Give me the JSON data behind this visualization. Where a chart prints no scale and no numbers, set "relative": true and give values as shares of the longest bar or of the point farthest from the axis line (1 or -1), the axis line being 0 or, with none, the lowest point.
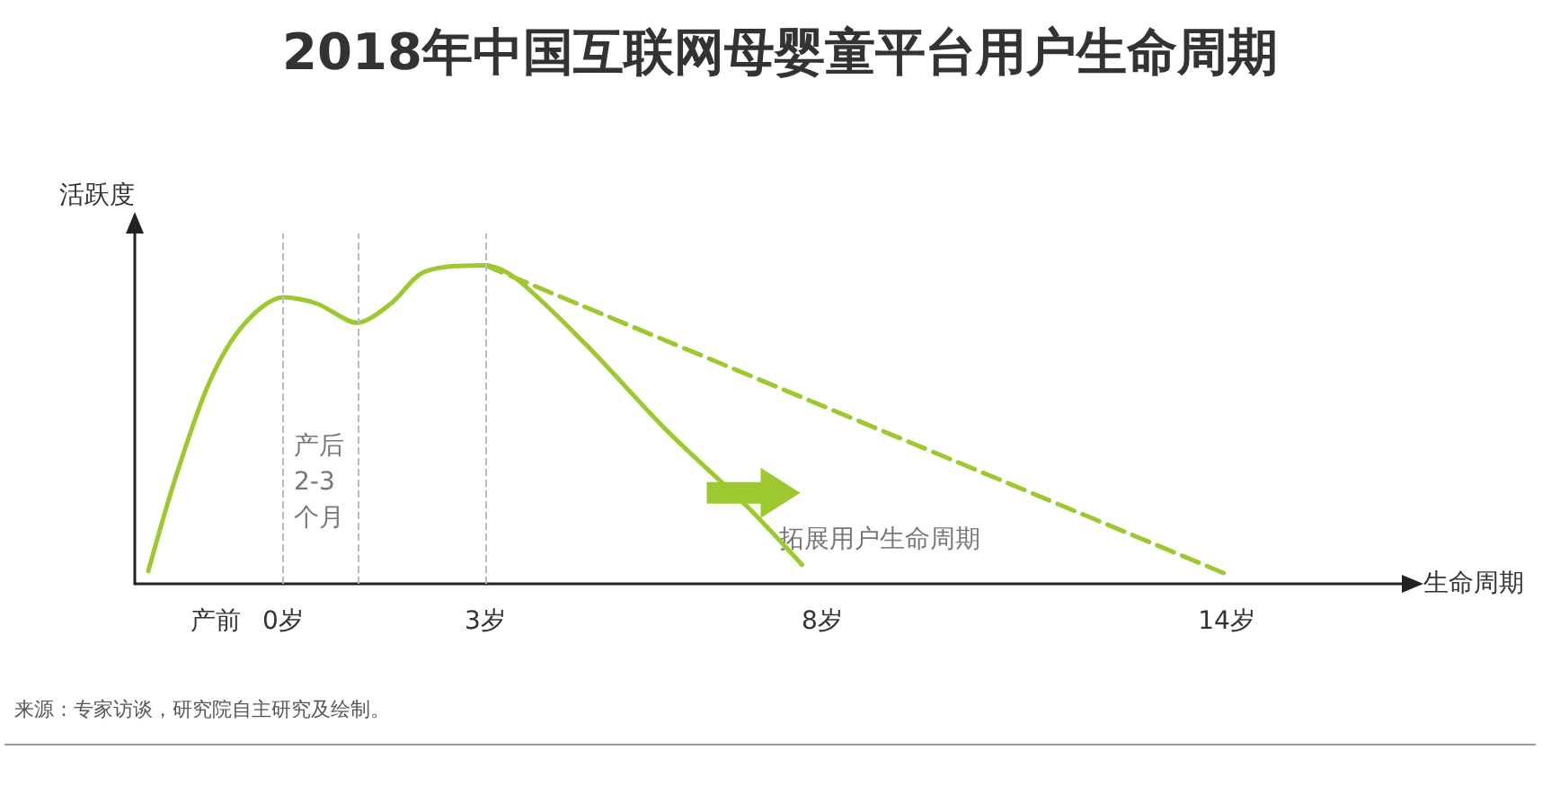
{
  "chart_data": {
    "type": "line",
    "relative": true,
    "title": "2018年中国互联网母婴童平台用户生命周期",
    "ylabel": "活跃度",
    "xlabel": "生命周期",
    "xlim": [
      -2.2,
      16.6
    ],
    "xticks": [
      {
        "value": -1,
        "label": "产前"
      },
      {
        "value": 0,
        "label": "0岁"
      },
      {
        "value": 3,
        "label": "3岁"
      },
      {
        "value": 8,
        "label": "8岁"
      },
      {
        "value": 14,
        "label": "14岁"
      }
    ],
    "series": [
      {
        "color": "#9dc82f",
        "line_style": "solid",
        "x": [
          -2.0,
          -1.6,
          -1.1,
          -0.6,
          0,
          0.5,
          1.1,
          1.6,
          2.1,
          3.0,
          3.45,
          4.5,
          5.7,
          6.9,
          7.7
        ],
        "values": [
          0.04,
          0.33,
          0.63,
          0.81,
          0.9,
          0.88,
          0.82,
          0.88,
          0.98,
          1.0,
          0.96,
          0.75,
          0.48,
          0.24,
          0.06
        ]
      },
      {
        "color": "#9dc82f",
        "line_style": "dashed",
        "x": [
          3.0,
          14.0
        ],
        "values": [
          1.0,
          0.03
        ]
      }
    ],
    "ref_lines": [
      {
        "axis": "x",
        "value": 0,
        "color": "#bbbbbb",
        "line_style": "dashed"
      },
      {
        "axis": "x",
        "value": 1.1,
        "color": "#bbbbbb",
        "line_style": "dashed"
      },
      {
        "axis": "x",
        "value": 3,
        "color": "#bbbbbb",
        "line_style": "dashed"
      }
    ],
    "annotations": [
      {
        "text": "产后\n2-3\n个月",
        "x": 0,
        "y": 0.32
      },
      {
        "text": "拓展用户生命周期",
        "x": 7.7,
        "y": 0.06
      },
      "来源：专家访谈，研究院自主研究及绘制。"
    ],
    "grid": false,
    "marker": "none"
  }
}
